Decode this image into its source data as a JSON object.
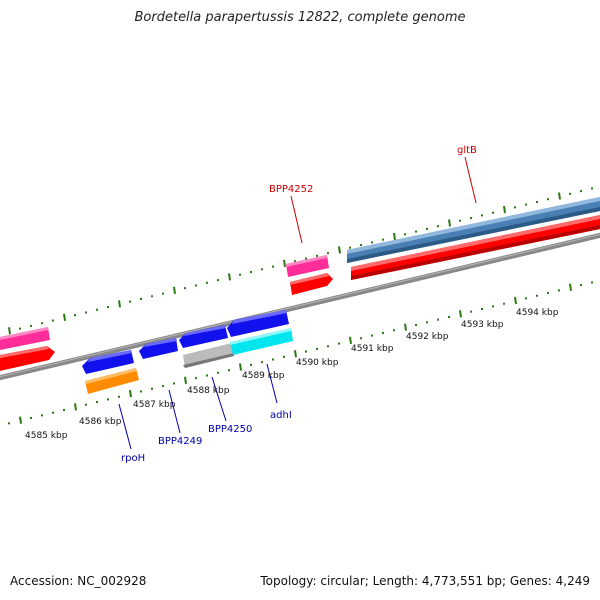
{
  "title": "Bordetella parapertussis 12822, complete genome",
  "footer": {
    "accession": "Accession: NC_002928",
    "summary": "Topology: circular; Length: 4,773,551 bp; Genes: 4,249"
  },
  "colors": {
    "backbone": "#888888",
    "tick": "#2a7a12",
    "fwd_label": "#cc0000",
    "rev_label": "#0000aa",
    "red": "#ff0000",
    "pink": "#ff2d9a",
    "steel_blue": "#4a7fb3",
    "blue": "#1111ee",
    "orange": "#ff8c00",
    "cyan": "#00e5ee",
    "gray": "#bbbbbb"
  },
  "scale_labels": [
    "4585 kbp",
    "4586 kbp",
    "4587 kbp",
    "4588 kbp",
    "4589 kbp",
    "4590 kbp",
    "4591 kbp",
    "4592 kbp",
    "4593 kbp",
    "4594 kbp"
  ],
  "gene_labels": {
    "gltB": "gltB",
    "BPP4252": "BPP4252",
    "rpoH": "rpoH",
    "BPP4249": "BPP4249",
    "BPP4250": "BPP4250",
    "adhI": "adhI"
  }
}
